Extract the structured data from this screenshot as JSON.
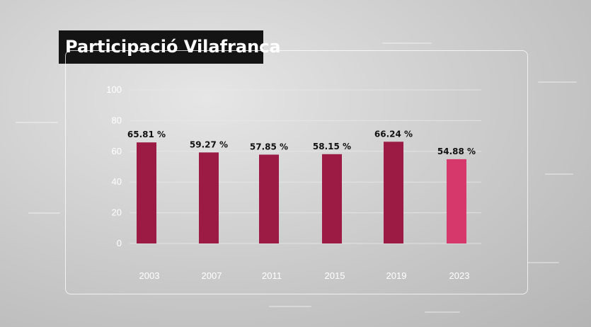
{
  "title": "Participació Vilafranca",
  "colors": {
    "bar": "#9b1b45",
    "bar_highlight": "#d6386b",
    "grid": "#e8e8e8",
    "tick_text": "#ffffff",
    "label_text": "#111111"
  },
  "chart_data": {
    "type": "bar",
    "categories": [
      "2003",
      "2007",
      "2011",
      "2015",
      "2019",
      "2023"
    ],
    "values": [
      65.81,
      59.27,
      57.85,
      58.15,
      66.24,
      54.88
    ],
    "value_labels": [
      "65.81 %",
      "59.27 %",
      "57.85 %",
      "58.15 %",
      "66.24 %",
      "54.88 %"
    ],
    "ylim": [
      0,
      100
    ],
    "yticks": [
      "100",
      "80",
      "60",
      "40",
      "20",
      "0"
    ],
    "grid": true,
    "highlight_index": 5
  }
}
